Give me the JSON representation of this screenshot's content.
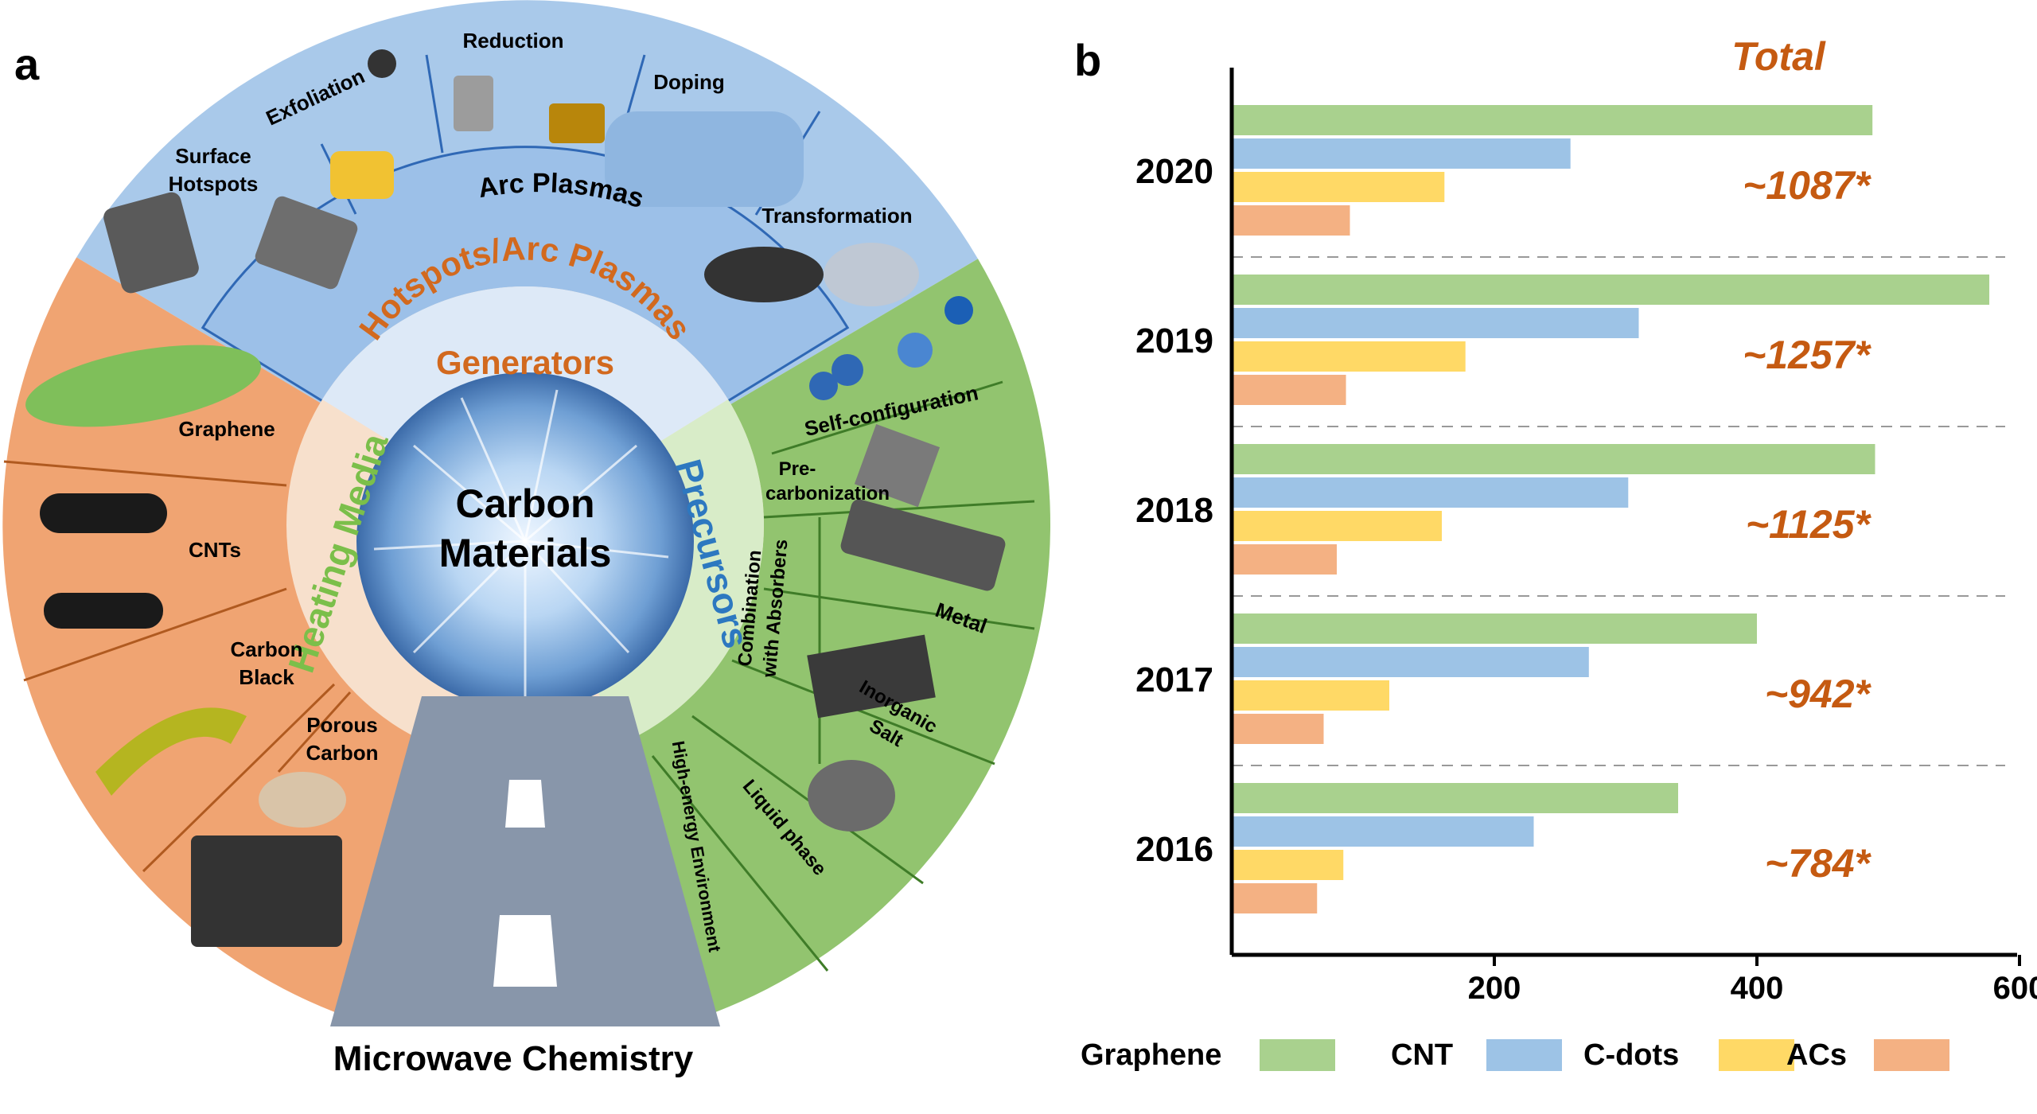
{
  "panel_a": {
    "panel_label": "a",
    "center": [
      "Carbon",
      "Materials"
    ],
    "footer": "Microwave Chemistry",
    "groups": {
      "hotspots": [
        "Hotspots/Arc Plasmas",
        "Generators"
      ],
      "heating": "Heating Media",
      "precursors": "Precursors",
      "arc": "Arc Plasmas"
    },
    "sectors": {
      "surface_hotspots": [
        "Surface",
        "Hotspots"
      ],
      "exfoliation": "Exfoliation",
      "reduction": "Reduction",
      "doping": "Doping",
      "transformation": "Transformation",
      "self_configuration": "Self-configuration",
      "precarbonization": [
        "Pre-",
        "carbonization"
      ],
      "combination": [
        "Combination",
        "with Absorbers"
      ],
      "metal": "Metal",
      "inorganic_salt": [
        "Inorganic",
        "Salt"
      ],
      "liquid_phase": "Liquid phase",
      "high_energy": "High-energy Environment",
      "graphene": "Graphene",
      "cnts": "CNTs",
      "carbon_black": [
        "Carbon",
        "Black"
      ],
      "porous_carbon": [
        "Porous",
        "Carbon"
      ]
    },
    "colors": {
      "blue": "#a9c9ea",
      "green": "#92c46f",
      "orange": "#f0a472",
      "dark_green": "#5e9a3a",
      "road": "#8896aa",
      "accent_orange": "#d2691e",
      "accent_blue": "#2d78c0"
    }
  },
  "chart_data": {
    "type": "bar",
    "orientation": "horizontal",
    "panel_label": "b",
    "categories": [
      "2020",
      "2019",
      "2018",
      "2017",
      "2016"
    ],
    "series": [
      {
        "name": "Graphene",
        "color": "#a9d18e",
        "values": [
          488,
          577,
          490,
          400,
          340
        ]
      },
      {
        "name": "CNT",
        "color": "#9dc3e6",
        "values": [
          258,
          310,
          302,
          272,
          230
        ]
      },
      {
        "name": "C-dots",
        "color": "#ffd966",
        "values": [
          162,
          178,
          160,
          120,
          85
        ]
      },
      {
        "name": "ACs",
        "color": "#f4b183",
        "values": [
          90,
          87,
          80,
          70,
          65
        ]
      }
    ],
    "totals_title": "Total",
    "totals": [
      "~1087*",
      "~1257*",
      "~1125*",
      "~942*",
      "~784*"
    ],
    "xlim": [
      0,
      600
    ],
    "xticks": [
      "200",
      "400",
      "600"
    ],
    "xtick_values": [
      200,
      400,
      600
    ],
    "legend_labels": [
      "Graphene",
      "CNT",
      "C-dots",
      "ACs"
    ],
    "totals_color": "#c55a11",
    "xlabel": "",
    "ylabel": ""
  }
}
